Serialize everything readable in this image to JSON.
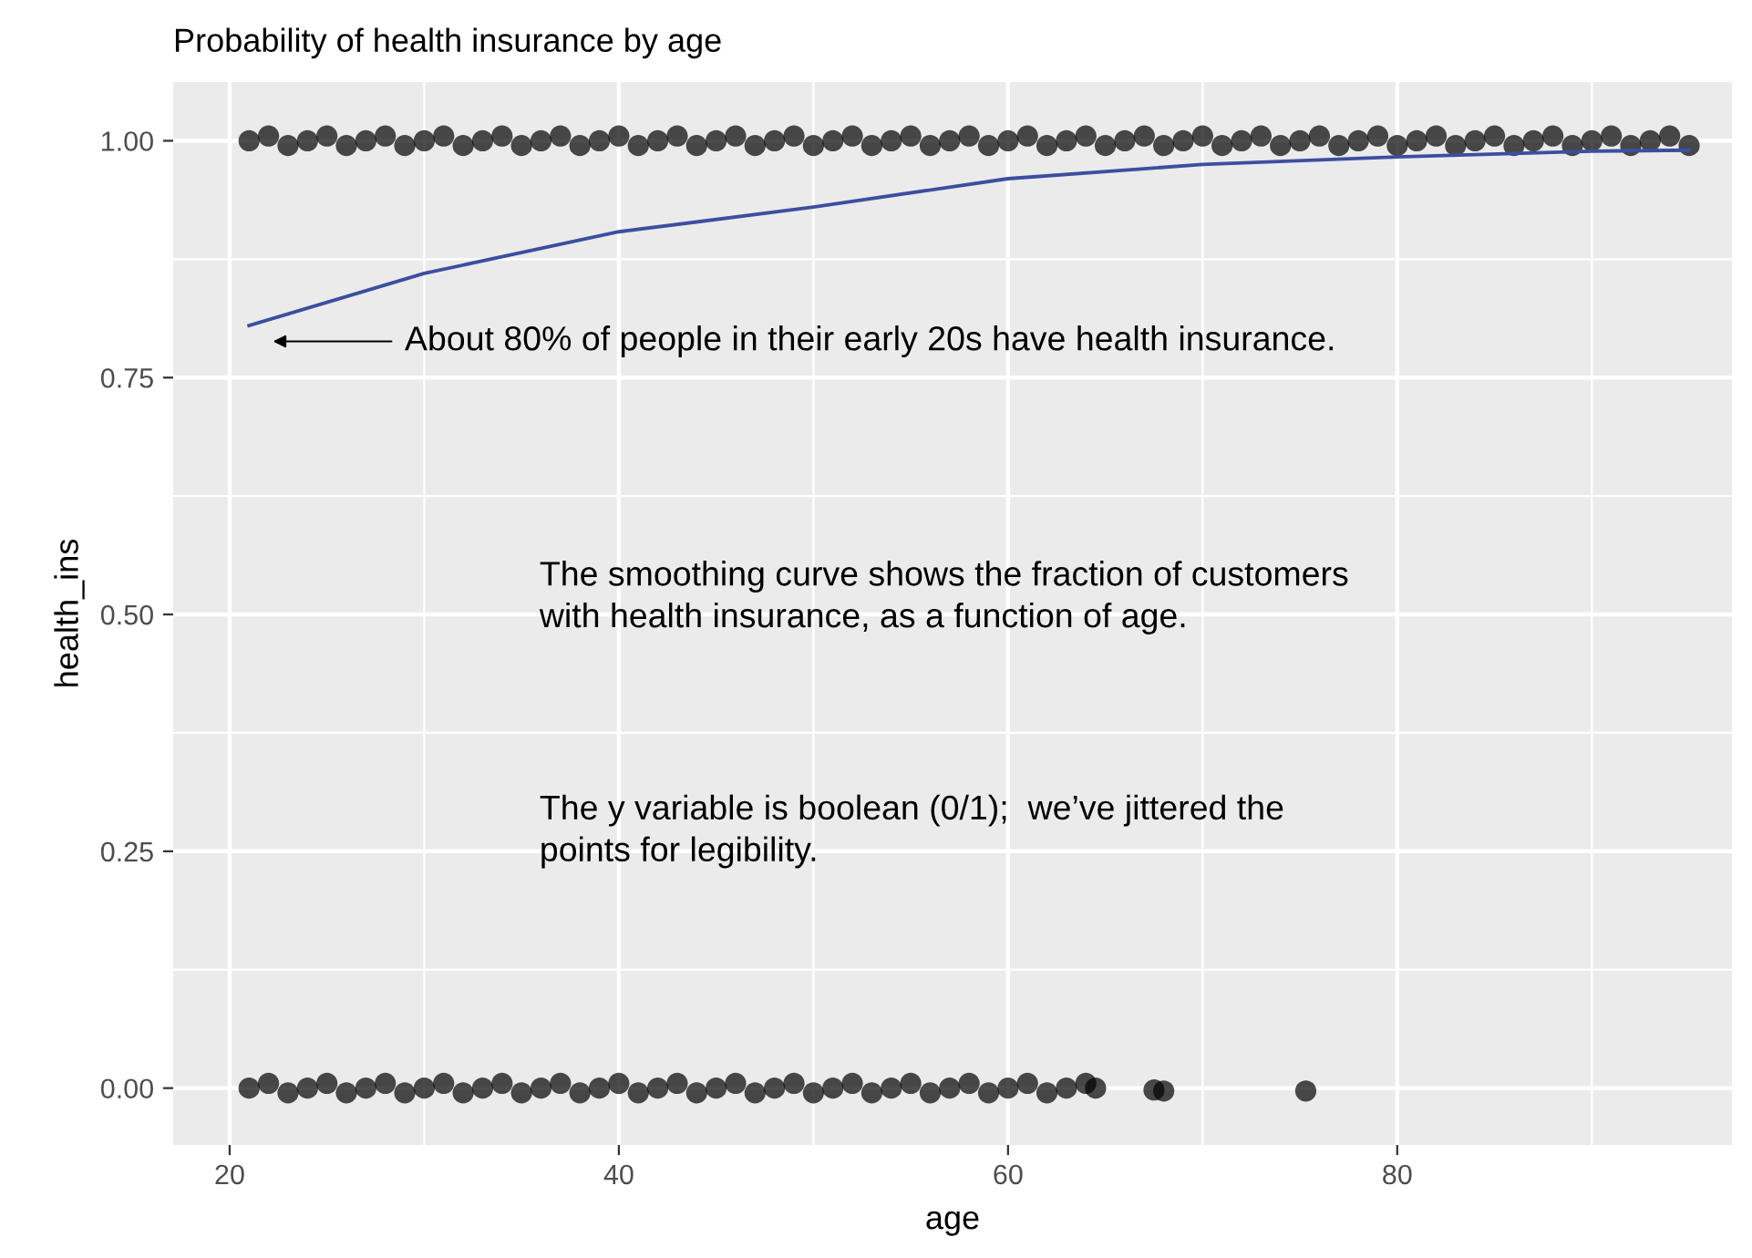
{
  "chart_data": {
    "type": "scatter",
    "title": "Probability of health insurance by age",
    "xlabel": "age",
    "ylabel": "health_ins",
    "xlim": [
      17.1,
      97.2
    ],
    "ylim": [
      -0.06,
      1.062
    ],
    "xticks": [
      20,
      40,
      60,
      80
    ],
    "yticks": [
      {
        "value": 0,
        "label": "0.00"
      },
      {
        "value": 0.25,
        "label": "0.25"
      },
      {
        "value": 0.5,
        "label": "0.50"
      },
      {
        "value": 0.75,
        "label": "0.75"
      },
      {
        "value": 1,
        "label": "1.00"
      }
    ],
    "grid": true,
    "series": [
      {
        "marker": "circle",
        "color": "#000000",
        "x": [
          21,
          22,
          23,
          24,
          25,
          26,
          27,
          28,
          29,
          30,
          31,
          32,
          33,
          34,
          35,
          36,
          37,
          38,
          39,
          40,
          41,
          42,
          43,
          44,
          45,
          46,
          47,
          48,
          49,
          50,
          51,
          52,
          53,
          54,
          55,
          56,
          57,
          58,
          59,
          60,
          61,
          62,
          63,
          64,
          65,
          66,
          67,
          68,
          69,
          70,
          71,
          72,
          73,
          74,
          75,
          76,
          77,
          78,
          79,
          80,
          81,
          82,
          83,
          84,
          85,
          86,
          87,
          88,
          89,
          90,
          91,
          92,
          93,
          94,
          95
        ],
        "values": [
          1.0,
          1.005,
          0.995,
          1.0,
          1.005,
          0.995,
          1.0,
          1.005,
          0.995,
          1.0,
          1.005,
          0.995,
          1.0,
          1.005,
          0.995,
          1.0,
          1.005,
          0.995,
          1.0,
          1.005,
          0.995,
          1.0,
          1.005,
          0.995,
          1.0,
          1.005,
          0.995,
          1.0,
          1.005,
          0.995,
          1.0,
          1.005,
          0.995,
          1.0,
          1.005,
          0.995,
          1.0,
          1.005,
          0.995,
          1.0,
          1.005,
          0.995,
          1.0,
          1.005,
          0.995,
          1.0,
          1.005,
          0.995,
          1.0,
          1.005,
          0.995,
          1.0,
          1.005,
          0.995,
          1.0,
          1.005,
          0.995,
          1.0,
          1.005,
          0.995,
          1.0,
          1.005,
          0.995,
          1.0,
          1.005,
          0.995,
          1.0,
          1.005,
          0.995,
          1.0,
          1.005,
          0.995,
          1.0,
          1.005,
          0.995
        ]
      },
      {
        "marker": "circle",
        "color": "#000000",
        "x": [
          21,
          22,
          23,
          24,
          25,
          26,
          27,
          28,
          29,
          30,
          31,
          32,
          33,
          34,
          35,
          36,
          37,
          38,
          39,
          40,
          41,
          42,
          43,
          44,
          45,
          46,
          47,
          48,
          49,
          50,
          51,
          52,
          53,
          54,
          55,
          56,
          57,
          58,
          59,
          60,
          61,
          62,
          63,
          64,
          64.5,
          67.5,
          68,
          75.3
        ],
        "values": [
          0.0,
          0.005,
          -0.005,
          0.0,
          0.005,
          -0.005,
          0.0,
          0.005,
          -0.005,
          0.0,
          0.005,
          -0.005,
          0.0,
          0.005,
          -0.005,
          0.0,
          0.005,
          -0.005,
          0.0,
          0.005,
          -0.005,
          0.0,
          0.005,
          -0.005,
          0.0,
          0.005,
          -0.005,
          0.0,
          0.005,
          -0.005,
          0.0,
          0.005,
          -0.005,
          0.0,
          0.005,
          -0.005,
          0.0,
          0.005,
          -0.005,
          0.0,
          0.005,
          -0.005,
          0.0,
          0.005,
          0.0,
          -0.002,
          -0.003,
          -0.003
        ]
      },
      {
        "type": "line",
        "marker": "none",
        "color": "#3b4fa0",
        "x": [
          21,
          30,
          40,
          50,
          60,
          70,
          80,
          90,
          95
        ],
        "values": [
          0.805,
          0.86,
          0.904,
          0.93,
          0.96,
          0.975,
          0.983,
          0.989,
          0.99
        ]
      }
    ],
    "annotations": [
      "About 80% of people in their early 20s have health insurance.",
      "The smoothing curve shows the fraction of customers\nwith health insurance, as a function of age.",
      "The y variable is boolean (0/1);  we’ve jittered the\npoints for legibility."
    ]
  }
}
